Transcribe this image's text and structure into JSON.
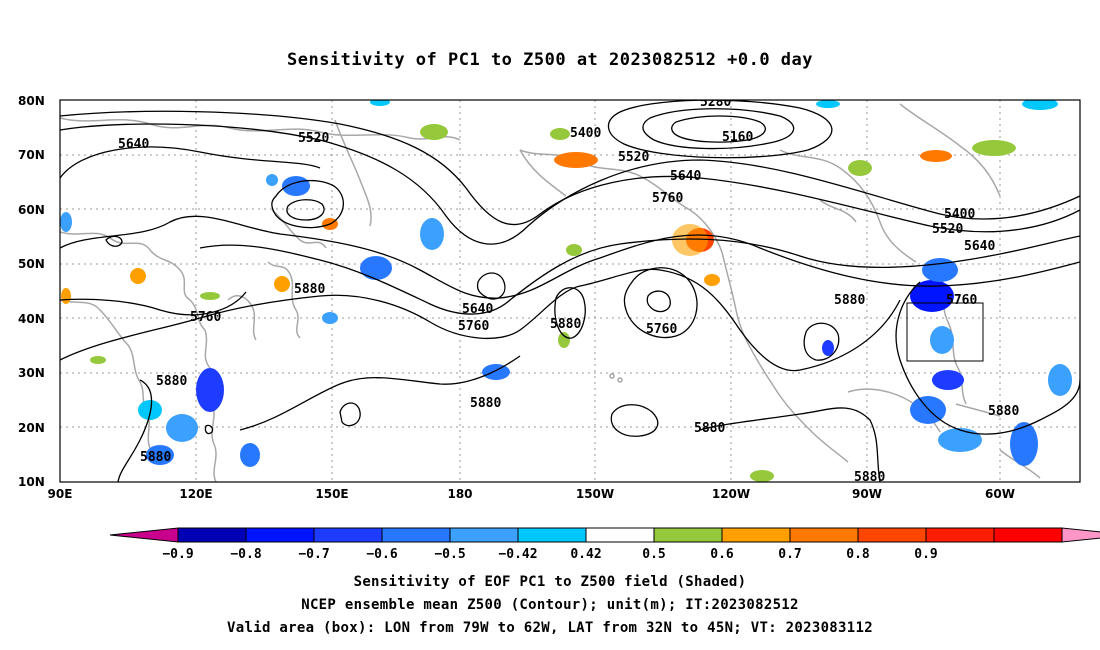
{
  "title": "Sensitivity of PC1 to Z500 at 2023082512 +0.0 day",
  "map": {
    "lat_labels": [
      "80N",
      "70N",
      "60N",
      "50N",
      "40N",
      "30N",
      "20N",
      "10N"
    ],
    "lon_labels": [
      "90E",
      "120E",
      "150E",
      "180",
      "150W",
      "120W",
      "90W",
      "60W"
    ],
    "contour_labels": [
      {
        "text": "5640",
        "kind": "contour"
      },
      {
        "text": "5520",
        "kind": "contour"
      },
      {
        "text": "5400",
        "kind": "contour"
      },
      {
        "text": "5280",
        "kind": "contour"
      },
      {
        "text": "5160",
        "kind": "contour"
      },
      {
        "text": "5520",
        "kind": "contour"
      },
      {
        "text": "5640",
        "kind": "contour"
      },
      {
        "text": "5760",
        "kind": "contour"
      },
      {
        "text": "5400",
        "kind": "contour"
      },
      {
        "text": "5520",
        "kind": "contour"
      },
      {
        "text": "5640",
        "kind": "contour"
      },
      {
        "text": "5880",
        "kind": "contour"
      },
      {
        "text": "5760",
        "kind": "contour"
      },
      {
        "text": "5880",
        "kind": "contour"
      },
      {
        "text": "5640",
        "kind": "contour"
      },
      {
        "text": "5760",
        "kind": "contour"
      },
      {
        "text": "5880",
        "kind": "contour"
      },
      {
        "text": "5760",
        "kind": "contour"
      },
      {
        "text": "5760",
        "kind": "contour"
      },
      {
        "text": "5880",
        "kind": "contour"
      },
      {
        "text": "5880",
        "kind": "contour"
      },
      {
        "text": "5880",
        "kind": "contour"
      },
      {
        "text": "5880",
        "kind": "contour"
      },
      {
        "text": "5880",
        "kind": "contour"
      },
      {
        "text": "5880",
        "kind": "contour"
      }
    ],
    "valid_box": {
      "lon_from": "79W",
      "lon_to": "62W",
      "lat_from": "32N",
      "lat_to": "45N"
    }
  },
  "colorbar": {
    "colors": [
      "#c8008c",
      "#0000b4",
      "#0014ff",
      "#1e3cff",
      "#2878ff",
      "#3ca0ff",
      "#00c8ff",
      "#ffffff",
      "#96c83c",
      "#ffa000",
      "#ff7800",
      "#ff4600",
      "#ff1e00",
      "#ff0000",
      "#ff96c8"
    ],
    "labels": [
      "−0.9",
      "−0.8",
      "−0.7",
      "−0.6",
      "−0.5",
      "−0.42",
      "0.42",
      "0.5",
      "0.6",
      "0.7",
      "0.8",
      "0.9"
    ]
  },
  "captions": {
    "line1": "Sensitivity of EOF PC1 to Z500 field (Shaded)",
    "line2": "NCEP ensemble mean Z500 (Contour); unit(m); IT:2023082512",
    "line3": "Valid area (box): LON from 79W to 62W, LAT from 32N to 45N; VT: 2023083112"
  }
}
